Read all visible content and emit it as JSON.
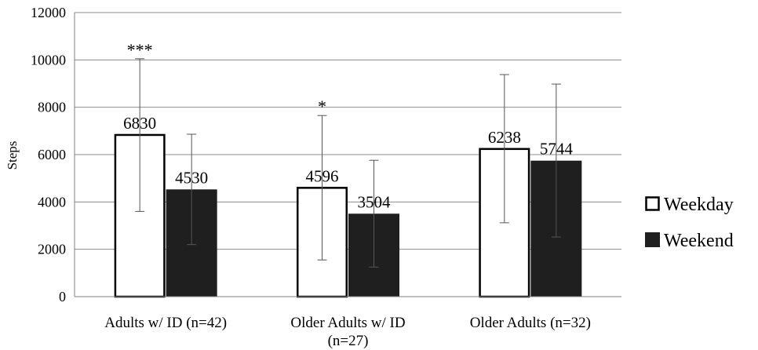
{
  "chart_data": {
    "type": "bar",
    "ylabel": "Steps",
    "ylim": [
      0,
      12000
    ],
    "yticks": [
      0,
      2000,
      4000,
      6000,
      8000,
      10000,
      12000
    ],
    "grid": true,
    "legend_position": "right",
    "categories": [
      {
        "line1": "Adults w/ ID (n=42)",
        "line2": ""
      },
      {
        "line1": "Older Adults w/ ID",
        "line2": "(n=27)"
      },
      {
        "line1": "Older Adults (n=32)",
        "line2": ""
      }
    ],
    "series": [
      {
        "name": "Weekday",
        "fill": "#ffffff",
        "values": [
          6830,
          4596,
          6238
        ],
        "error_high": [
          10050,
          7650,
          9380
        ],
        "error_low": [
          3600,
          1550,
          3120
        ],
        "value_labels": [
          "6830",
          "4596",
          "6238"
        ]
      },
      {
        "name": "Weekend",
        "fill": "#1f1f1f",
        "values": [
          4530,
          3504,
          5744
        ],
        "error_high": [
          6860,
          5760,
          8980
        ],
        "error_low": [
          2200,
          1250,
          2520
        ],
        "value_labels": [
          "4530",
          "3504",
          "5744"
        ]
      }
    ],
    "annotations": [
      "***",
      "*",
      ""
    ]
  }
}
